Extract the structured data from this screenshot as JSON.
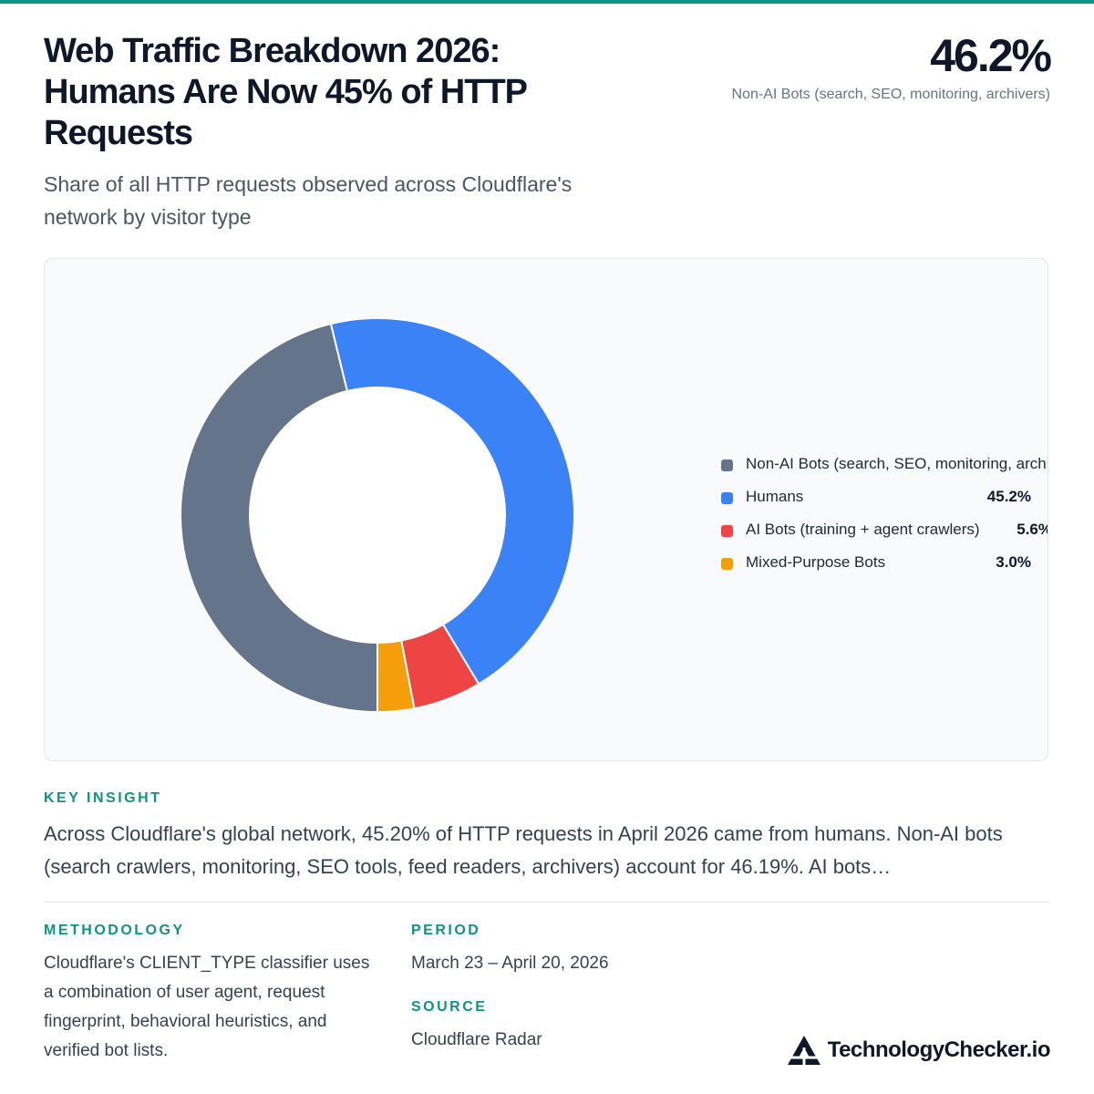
{
  "colors": {
    "accent": "#0d9488",
    "non_ai_bots": "#64748b",
    "humans": "#3b82f6",
    "ai_bots": "#ef4444",
    "mixed_purpose": "#f59e0b"
  },
  "header": {
    "title": "Web Traffic Breakdown 2026: Humans Are Now 45% of HTTP Requests",
    "subtitle": "Share of all HTTP requests observed across Cloudflare's network by visitor type",
    "stat_value": "46.2%",
    "stat_caption": "Non-AI Bots (search, SEO, monitoring, archivers)"
  },
  "chart_data": {
    "type": "pie",
    "variant": "donut",
    "start_angle_deg": 90,
    "direction": "clockwise",
    "series": [
      {
        "name": "Non-AI Bots (search, SEO, monitoring, archivers)",
        "value": 46.2,
        "value_label": "46.2%",
        "color": "#64748b"
      },
      {
        "name": "Humans",
        "value": 45.2,
        "value_label": "45.2%",
        "color": "#3b82f6"
      },
      {
        "name": "AI Bots (training + agent crawlers)",
        "value": 5.6,
        "value_label": "5.6%",
        "color": "#ef4444"
      },
      {
        "name": "Mixed-Purpose Bots",
        "value": 3.0,
        "value_label": "3.0%",
        "color": "#f59e0b"
      }
    ],
    "legend_position": "right"
  },
  "insight": {
    "label": "KEY INSIGHT",
    "text": "Across Cloudflare's global network, 45.20% of HTTP requests in April 2026 came from humans. Non-AI bots (search crawlers, monitoring, SEO tools, feed readers, archivers) account for 46.19%. AI bots…"
  },
  "methodology": {
    "label": "METHODOLOGY",
    "text": "Cloudflare's CLIENT_TYPE classifier uses a combination of user agent, request fingerprint, behavioral heuristics, and verified bot lists."
  },
  "period": {
    "label": "PERIOD",
    "text": "March 23 – April 20, 2026"
  },
  "source": {
    "label": "SOURCE",
    "text": "Cloudflare Radar"
  },
  "brand": {
    "name": "TechnologyChecker.io",
    "logo_icon": "triangle-logo-icon"
  }
}
